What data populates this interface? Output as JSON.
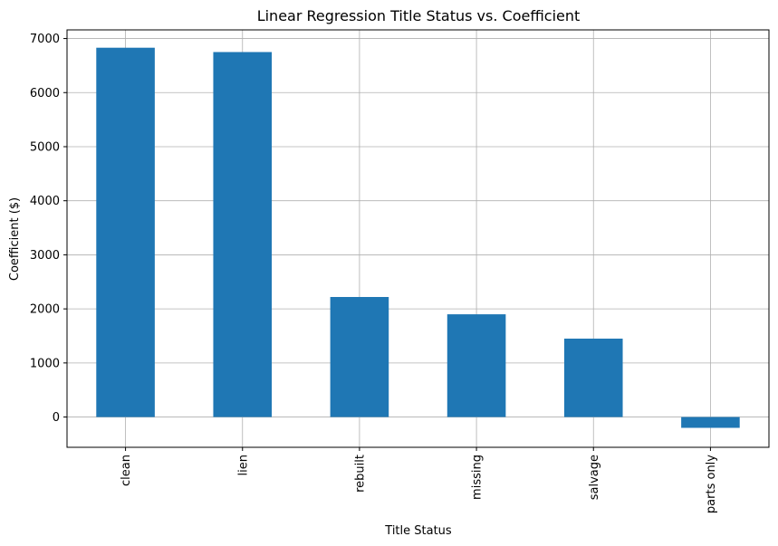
{
  "chart_data": {
    "type": "bar",
    "title": "Linear Regression Title Status vs. Coefficient",
    "xlabel": "Title Status",
    "ylabel": "Coefficient ($)",
    "categories": [
      "clean",
      "lien",
      "rebuilt",
      "missing",
      "salvage",
      "parts only"
    ],
    "values": [
      6830,
      6750,
      2220,
      1900,
      1450,
      -200
    ],
    "ylim": [
      -560,
      7160
    ],
    "yticks": [
      0,
      1000,
      2000,
      3000,
      4000,
      5000,
      6000,
      7000
    ],
    "grid": true,
    "bar_color": "#1f77b4",
    "grid_color": "#b0b0b0"
  }
}
